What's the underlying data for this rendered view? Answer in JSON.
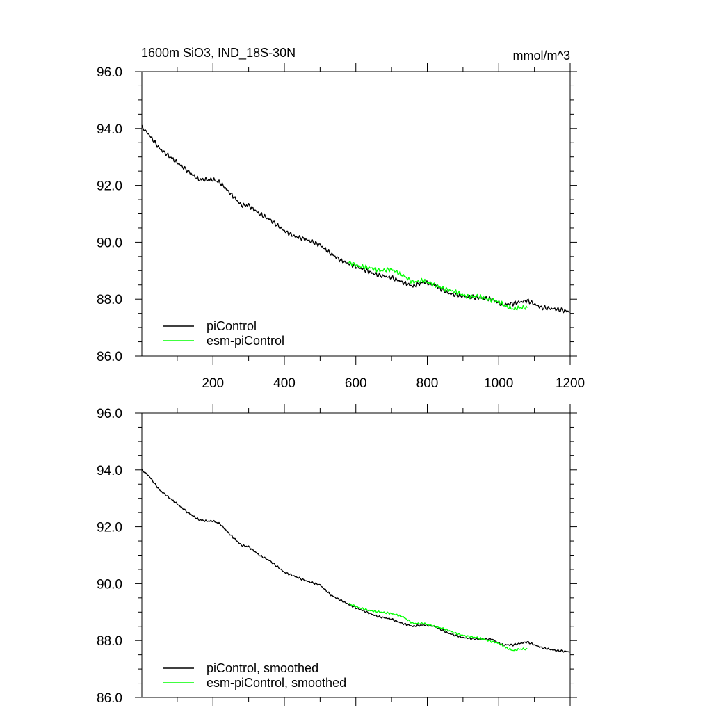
{
  "chart_data": [
    {
      "type": "line",
      "title": "1600m SiO3, IND_18S-30N",
      "units": "mmol/m^3",
      "xlim": [
        1,
        1200
      ],
      "ylim": [
        86.0,
        96.0
      ],
      "y_ticks": [
        "86.0",
        "88.0",
        "90.0",
        "92.0",
        "94.0",
        "96.0"
      ],
      "x_ticks": [
        "200",
        "400",
        "600",
        "800",
        "1000",
        "1200"
      ],
      "legend_position": "bottom-left",
      "series": [
        {
          "name": "piControl",
          "color": "#000000",
          "x": [
            1,
            20,
            50,
            80,
            100,
            130,
            160,
            180,
            200,
            220,
            250,
            280,
            300,
            330,
            360,
            400,
            430,
            460,
            500,
            530,
            560,
            600,
            630,
            660,
            700,
            730,
            760,
            790,
            820,
            860,
            900,
            940,
            980,
            1010,
            1040,
            1080,
            1120,
            1160,
            1200
          ],
          "y": [
            94.05,
            93.8,
            93.3,
            93.0,
            92.8,
            92.5,
            92.2,
            92.2,
            92.2,
            92.1,
            91.7,
            91.3,
            91.3,
            91.0,
            90.8,
            90.4,
            90.2,
            90.1,
            89.9,
            89.6,
            89.35,
            89.15,
            89.0,
            88.85,
            88.75,
            88.6,
            88.45,
            88.6,
            88.5,
            88.2,
            88.1,
            88.05,
            88.0,
            87.8,
            87.85,
            87.95,
            87.7,
            87.65,
            87.55
          ]
        },
        {
          "name": "esm-piControl",
          "color": "#00ff00",
          "x": [
            580,
            610,
            640,
            670,
            700,
            730,
            760,
            790,
            820,
            850,
            880,
            910,
            940,
            970,
            1000,
            1020,
            1040,
            1060,
            1080
          ],
          "y": [
            89.3,
            89.15,
            89.1,
            89.0,
            89.05,
            88.85,
            88.6,
            88.65,
            88.5,
            88.35,
            88.25,
            88.1,
            88.1,
            88.0,
            87.9,
            87.75,
            87.65,
            87.7,
            87.7
          ]
        }
      ]
    },
    {
      "type": "line",
      "xlim": [
        1,
        1200
      ],
      "ylim": [
        86.0,
        96.0
      ],
      "y_ticks": [
        "86.0",
        "88.0",
        "90.0",
        "92.0",
        "94.0",
        "96.0"
      ],
      "legend_position": "bottom-left",
      "series": [
        {
          "name": "piControl, smoothed",
          "color": "#000000",
          "x": [
            1,
            20,
            50,
            80,
            100,
            130,
            160,
            180,
            200,
            220,
            250,
            280,
            300,
            330,
            360,
            400,
            430,
            460,
            500,
            530,
            560,
            600,
            630,
            660,
            700,
            730,
            760,
            790,
            820,
            860,
            900,
            940,
            980,
            1010,
            1040,
            1080,
            1120,
            1160,
            1200
          ],
          "y": [
            94.0,
            93.8,
            93.3,
            93.0,
            92.8,
            92.5,
            92.25,
            92.2,
            92.2,
            92.1,
            91.7,
            91.35,
            91.3,
            91.0,
            90.8,
            90.4,
            90.25,
            90.1,
            89.95,
            89.6,
            89.4,
            89.15,
            89.0,
            88.85,
            88.75,
            88.6,
            88.5,
            88.55,
            88.5,
            88.25,
            88.1,
            88.05,
            88.05,
            87.85,
            87.85,
            87.95,
            87.75,
            87.65,
            87.6
          ]
        },
        {
          "name": "esm-piControl, smoothed",
          "color": "#00ff00",
          "x": [
            580,
            610,
            640,
            670,
            700,
            730,
            760,
            790,
            820,
            850,
            880,
            910,
            940,
            970,
            1000,
            1020,
            1040,
            1060,
            1080
          ],
          "y": [
            89.3,
            89.15,
            89.05,
            89.0,
            88.95,
            88.85,
            88.6,
            88.6,
            88.5,
            88.4,
            88.25,
            88.15,
            88.1,
            88.0,
            87.9,
            87.75,
            87.65,
            87.7,
            87.7
          ]
        }
      ]
    }
  ]
}
